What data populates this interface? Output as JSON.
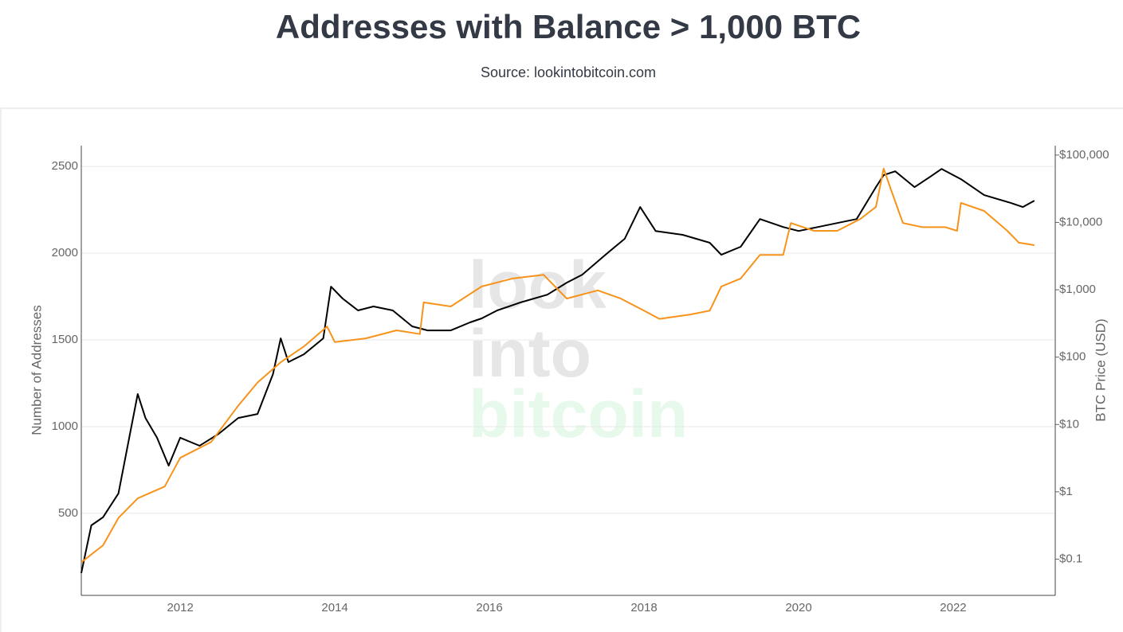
{
  "chart_data": {
    "type": "line",
    "title": "Addresses with Balance > 1,000 BTC",
    "subtitle": "Source: lookintobitcoin.com",
    "watermark": [
      "look",
      "into",
      "bitcoin"
    ],
    "ylabel": "Number of Addresses",
    "y2label": "BTC Price (USD)",
    "xlim": [
      2010.72,
      2023.32
    ],
    "xticks": [
      2012,
      2014,
      2016,
      2018,
      2020,
      2022
    ],
    "ylim": [
      27,
      2620
    ],
    "yticks": [
      500,
      1000,
      1500,
      2000,
      2500
    ],
    "y2lim": [
      0.029,
      138000
    ],
    "y2scale": "log",
    "y2ticks": [
      {
        "value": 0.1,
        "label": "$0.1"
      },
      {
        "value": 1,
        "label": "$1"
      },
      {
        "value": 10,
        "label": "$10"
      },
      {
        "value": 100,
        "label": "$100"
      },
      {
        "value": 1000,
        "label": "$1,000"
      },
      {
        "value": 10000,
        "label": "$10,000"
      },
      {
        "value": 100000,
        "label": "$100,000"
      }
    ],
    "grid": true,
    "series": [
      {
        "name": "Addresses",
        "color": "#000000",
        "axis": "y",
        "x": [
          2010.72,
          2010.85,
          2011.0,
          2011.2,
          2011.35,
          2011.45,
          2011.55,
          2011.7,
          2011.85,
          2012.0,
          2012.25,
          2012.5,
          2012.75,
          2013.0,
          2013.2,
          2013.3,
          2013.4,
          2013.6,
          2013.85,
          2013.95,
          2014.1,
          2014.3,
          2014.5,
          2014.75,
          2015.0,
          2015.2,
          2015.5,
          2015.75,
          2015.9,
          2016.1,
          2016.4,
          2016.75,
          2017.0,
          2017.2,
          2017.5,
          2017.75,
          2017.95,
          2018.15,
          2018.5,
          2018.85,
          2019.0,
          2019.25,
          2019.5,
          2019.8,
          2020.0,
          2020.25,
          2020.5,
          2020.75,
          2021.0,
          2021.1,
          2021.25,
          2021.5,
          2021.7,
          2021.85,
          2022.1,
          2022.4,
          2022.75,
          2022.9,
          2023.05
        ],
        "values": [
          156,
          431,
          477,
          615,
          959,
          1188,
          1050,
          936,
          775,
          936,
          890,
          959,
          1050,
          1073,
          1303,
          1509,
          1372,
          1417,
          1509,
          1807,
          1739,
          1670,
          1693,
          1670,
          1578,
          1555,
          1555,
          1601,
          1624,
          1670,
          1716,
          1761,
          1830,
          1876,
          1991,
          2083,
          2266,
          2128,
          2106,
          2060,
          1991,
          2037,
          2197,
          2151,
          2128,
          2151,
          2174,
          2197,
          2381,
          2450,
          2472,
          2381,
          2440,
          2486,
          2427,
          2335,
          2289,
          2266,
          2303
        ]
      },
      {
        "name": "BTC Price",
        "color": "#f7931a",
        "axis": "y2",
        "x": [
          2010.72,
          2011.0,
          2011.2,
          2011.45,
          2011.8,
          2012.0,
          2012.4,
          2012.75,
          2013.0,
          2013.3,
          2013.6,
          2013.9,
          2014.0,
          2014.4,
          2014.8,
          2015.1,
          2015.15,
          2015.5,
          2015.9,
          2016.3,
          2016.7,
          2017.0,
          2017.4,
          2017.7,
          2018.0,
          2018.2,
          2018.6,
          2018.85,
          2019.0,
          2019.25,
          2019.5,
          2019.8,
          2019.9,
          2020.2,
          2020.5,
          2020.8,
          2021.0,
          2021.1,
          2021.2,
          2021.35,
          2021.6,
          2021.9,
          2022.05,
          2022.1,
          2022.4,
          2022.7,
          2022.85,
          2023.05
        ],
        "values": [
          0.09,
          0.16,
          0.41,
          0.8,
          1.2,
          3.2,
          5.5,
          19,
          42,
          84,
          144,
          285,
          167,
          190,
          250,
          220,
          650,
          565,
          1120,
          1470,
          1670,
          740,
          980,
          740,
          490,
          370,
          430,
          490,
          1120,
          1470,
          3300,
          3300,
          9800,
          7500,
          7500,
          11300,
          17000,
          63000,
          29500,
          9800,
          8500,
          8500,
          7500,
          19500,
          14800,
          7500,
          5000,
          4600
        ]
      }
    ]
  }
}
